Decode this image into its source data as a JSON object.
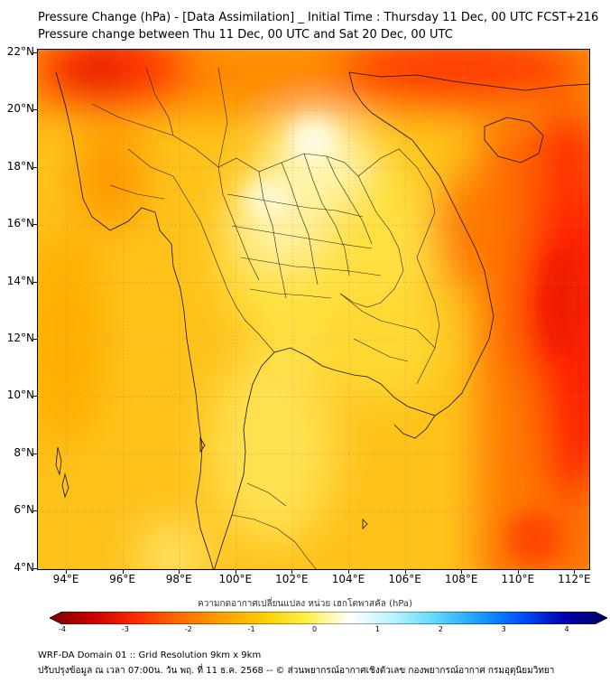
{
  "title_line1": "Pressure Change (hPa) - [Data Assimilation] _ Initial Time : Thursday 11 Dec, 00 UTC FCST+216",
  "title_line2": "Pressure change between Thu 11 Dec, 00 UTC and Sat 20 Dec, 00 UTC",
  "lat_ticks": [
    "22°N",
    "20°N",
    "18°N",
    "16°N",
    "14°N",
    "12°N",
    "10°N",
    "8°N",
    "6°N",
    "4°N"
  ],
  "lon_ticks": [
    "94°E",
    "96°E",
    "98°E",
    "100°E",
    "102°E",
    "104°E",
    "106°E",
    "108°E",
    "110°E",
    "112°E"
  ],
  "colorbar": {
    "label": "ความกดอากาศเปลี่ยนแปลง หน่วย เฮกโตพาสคัล (hPa)",
    "ticks": [
      "-4",
      "-3",
      "-2",
      "-1",
      "0",
      "1",
      "2",
      "3",
      "4"
    ],
    "colors": [
      "#7a0000",
      "#c80000",
      "#ff2a00",
      "#ff6a00",
      "#ff9d00",
      "#ffcf00",
      "#fff04a",
      "#ffffff",
      "#b8f4ff",
      "#5fd7ff",
      "#1aa0ff",
      "#0050ff",
      "#0000b0",
      "#000060"
    ]
  },
  "footer_line1": "WRF-DA Domain 01 :: Grid Resolution 9km x 9km",
  "footer_line2": "ปรับปรุงข้อมูล ณ เวลา 07:00น. วัน พฤ. ที่ 11 ธ.ค. 2568 -- © ส่วนพยากรณ์อากาศเชิงตัวเลข กองพยากรณ์อากาศ กรมอุตุนิยมวิทยา"
}
